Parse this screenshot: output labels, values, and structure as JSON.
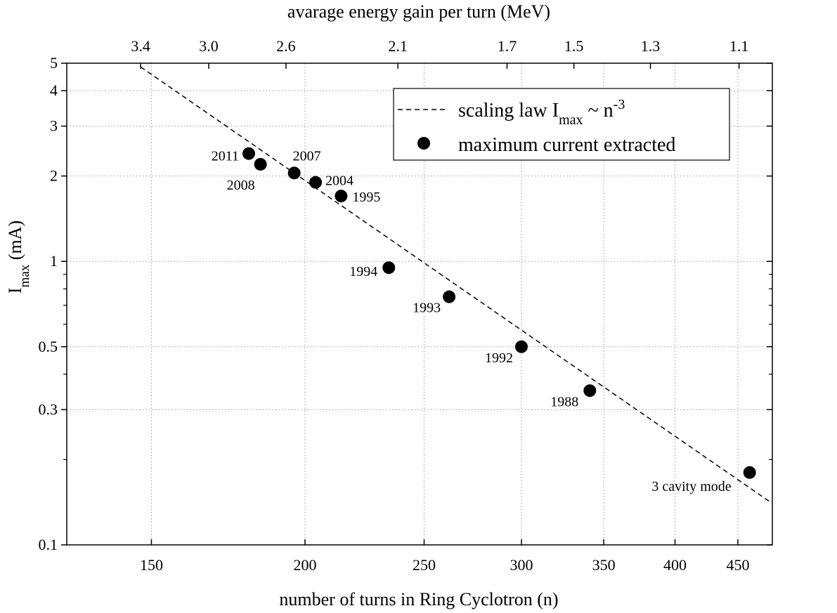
{
  "chart_data": {
    "type": "scatter",
    "x_scale": "log",
    "y_scale": "log",
    "xlim": [
      128,
      480
    ],
    "ylim": [
      0.1,
      5
    ],
    "grid": true,
    "legend_position": "top-right",
    "xlabel": "number of turns in Ring Cyclotron (n)",
    "ylabel": {
      "main": "I",
      "sub": "max",
      "rest": " (mA)"
    },
    "top_xlabel": "avarage energy gain per turn (MeV)",
    "x_ticks": [
      {
        "value": 150,
        "label": "150"
      },
      {
        "value": 200,
        "label": "200"
      },
      {
        "value": 250,
        "label": "250"
      },
      {
        "value": 300,
        "label": "300"
      },
      {
        "value": 350,
        "label": "350"
      },
      {
        "value": 400,
        "label": "400"
      },
      {
        "value": 450,
        "label": "450"
      }
    ],
    "y_ticks": [
      {
        "value": 0.1,
        "label": "0.1"
      },
      {
        "value": 0.3,
        "label": "0.3"
      },
      {
        "value": 0.5,
        "label": "0.5"
      },
      {
        "value": 1,
        "label": "1"
      },
      {
        "value": 2,
        "label": "2"
      },
      {
        "value": 3,
        "label": "3"
      },
      {
        "value": 4,
        "label": "4"
      },
      {
        "value": 5,
        "label": "5"
      }
    ],
    "y_minor_ticks": [
      0.2,
      0.4,
      0.6,
      0.7,
      0.8,
      0.9
    ],
    "top_ticks": [
      {
        "n": 147,
        "label": "3.4"
      },
      {
        "n": 167,
        "label": "3.0"
      },
      {
        "n": 193,
        "label": "2.6"
      },
      {
        "n": 238,
        "label": "2.1"
      },
      {
        "n": 292,
        "label": "1.7"
      },
      {
        "n": 331,
        "label": "1.5"
      },
      {
        "n": 382,
        "label": "1.3"
      },
      {
        "n": 451,
        "label": "1.1"
      }
    ],
    "series": [
      {
        "type": "line",
        "style": "dashed",
        "label": {
          "text": "scaling law I",
          "sub": "max",
          "mid": " ~ n",
          "sup": "-3"
        },
        "x": [
          147,
          480
        ],
        "y": [
          4.85,
          0.14
        ]
      },
      {
        "type": "scatter",
        "name": "maximum current extracted",
        "points": [
          {
            "x": 180,
            "y": 2.4,
            "label": "2011"
          },
          {
            "x": 184,
            "y": 2.2,
            "label": "2008"
          },
          {
            "x": 196,
            "y": 2.05,
            "label": "2007"
          },
          {
            "x": 204,
            "y": 1.9,
            "label": "2004"
          },
          {
            "x": 214,
            "y": 1.7,
            "label": "1995"
          },
          {
            "x": 234,
            "y": 0.95,
            "label": "1994"
          },
          {
            "x": 262,
            "y": 0.75,
            "label": "1993"
          },
          {
            "x": 300,
            "y": 0.5,
            "label": "1992"
          },
          {
            "x": 341,
            "y": 0.35,
            "label": "1988"
          },
          {
            "x": 460,
            "y": 0.18,
            "label": "3 cavity mode"
          }
        ]
      }
    ]
  }
}
